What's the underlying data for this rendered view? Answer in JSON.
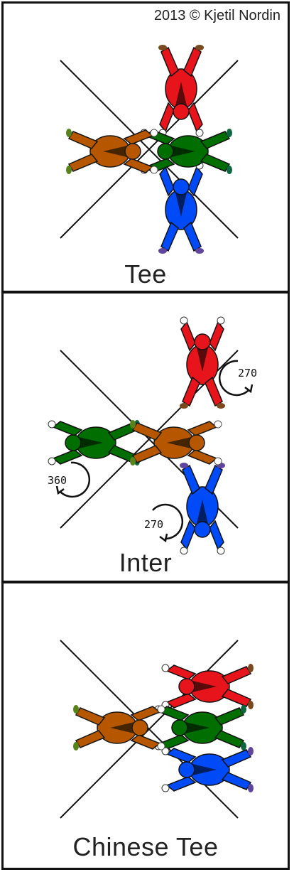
{
  "credit": "2013 © Kjetil Nordin",
  "panels": [
    {
      "label": "Tee"
    },
    {
      "label": "Inter",
      "rotations": [
        "270",
        "360",
        "270"
      ]
    },
    {
      "label": "Chinese Tee"
    }
  ],
  "colors": {
    "red": "#e8141c",
    "yellow": "#f2ea1a",
    "green": "#27a626",
    "blue": "#1c2ad6",
    "skin": "#7a4a1e",
    "line": "#111111"
  }
}
